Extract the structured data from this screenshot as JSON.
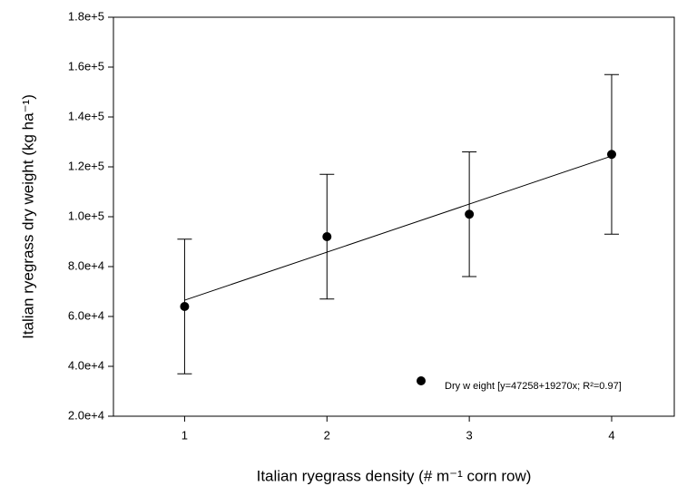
{
  "chart_data": {
    "type": "scatter",
    "xlabel": "Italian ryegrass density (# m⁻¹ corn row)",
    "ylabel": "Italian ryegrass dry weight (kg ha⁻¹)",
    "xlim": [
      0.5,
      4.44
    ],
    "ylim": [
      20000,
      180000
    ],
    "xticks": [
      1,
      2,
      3,
      4
    ],
    "yticks": [
      {
        "value": 20000,
        "label": "2.0e+4"
      },
      {
        "value": 40000,
        "label": "4.0e+4"
      },
      {
        "value": 60000,
        "label": "6.0e+4"
      },
      {
        "value": 80000,
        "label": "8.0e+4"
      },
      {
        "value": 100000,
        "label": "1.0e+5"
      },
      {
        "value": 120000,
        "label": "1.2e+5"
      },
      {
        "value": 140000,
        "label": "1.4e+5"
      },
      {
        "value": 160000,
        "label": "1.6e+5"
      },
      {
        "value": 180000,
        "label": "1.8e+5"
      }
    ],
    "series": [
      {
        "name": "Dry w eight [y=47258+19270x; R²=0.97]",
        "color": "#000000",
        "x": [
          1,
          2,
          3,
          4
        ],
        "values": [
          64000,
          92000,
          101000,
          125000
        ],
        "errors": [
          27000,
          25000,
          25000,
          32000
        ]
      }
    ],
    "fit": {
      "x": [
        1,
        4
      ],
      "values": [
        66528,
        124338
      ]
    },
    "legend": "lower right"
  }
}
